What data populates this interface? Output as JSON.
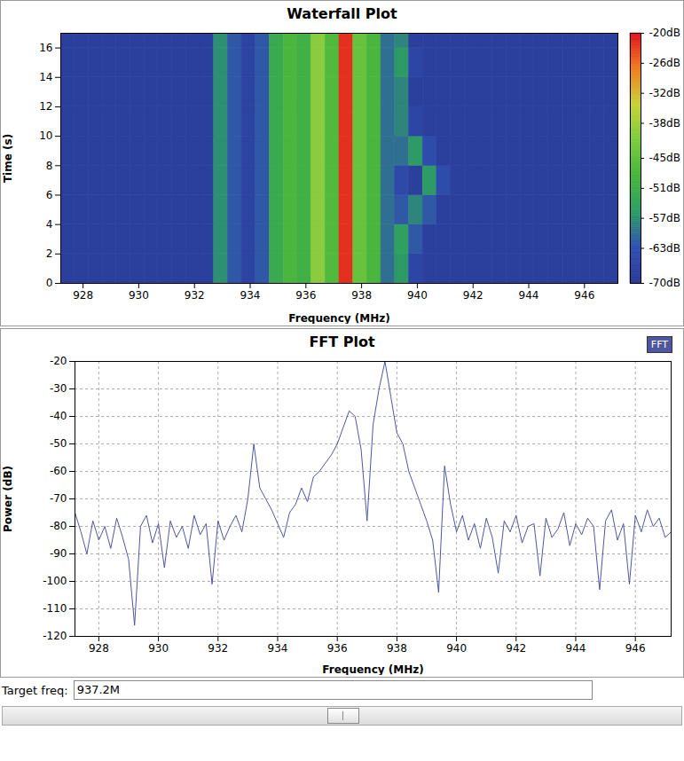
{
  "chart_data": [
    {
      "type": "heatmap",
      "title": "Waterfall Plot",
      "x_label": "Frequency (MHz)",
      "y_label": "Time (s)",
      "xlim": [
        927.2,
        947.2
      ],
      "xticks": [
        928,
        930,
        932,
        934,
        936,
        938,
        940,
        942,
        944,
        946
      ],
      "ylim": [
        0,
        17
      ],
      "yticks": [
        0,
        2,
        4,
        6,
        8,
        10,
        12,
        14,
        16
      ],
      "grid": false,
      "x_bins": [
        927.2,
        927.7,
        928.2,
        928.7,
        929.2,
        929.7,
        930.2,
        930.7,
        931.2,
        931.7,
        932.2,
        932.7,
        933.2,
        933.7,
        934.2,
        934.7,
        935.2,
        935.7,
        936.2,
        936.7,
        937.2,
        937.7,
        938.2,
        938.7,
        939.2,
        939.7,
        940.2,
        940.7,
        941.2,
        941.7,
        942.2,
        942.7,
        943.2,
        943.7,
        944.2,
        944.7,
        945.2,
        945.7,
        946.2,
        946.7,
        947.2
      ],
      "y_bins": [
        0,
        2,
        4,
        6,
        8,
        10,
        12,
        14,
        16,
        17
      ],
      "cells": [
        [
          -68,
          -68,
          -68,
          -68,
          -68,
          -68,
          -68,
          -68,
          -68,
          -68,
          -68,
          -57,
          -62,
          -67,
          -62,
          -52,
          -48,
          -50,
          -40,
          -47,
          -22,
          -44,
          -48,
          -60,
          -56,
          -66,
          -68,
          -68,
          -68,
          -68,
          -68,
          -68,
          -68,
          -68,
          -68,
          -68,
          -68,
          -68,
          -68,
          -68
        ],
        [
          -68,
          -68,
          -68,
          -68,
          -68,
          -68,
          -68,
          -68,
          -68,
          -68,
          -68,
          -57,
          -62,
          -67,
          -62,
          -52,
          -48,
          -50,
          -40,
          -47,
          -22,
          -44,
          -48,
          -60,
          -55,
          -62,
          -68,
          -68,
          -68,
          -68,
          -68,
          -68,
          -68,
          -68,
          -68,
          -68,
          -68,
          -68,
          -68,
          -68
        ],
        [
          -68,
          -68,
          -68,
          -68,
          -68,
          -68,
          -68,
          -68,
          -68,
          -68,
          -68,
          -57,
          -62,
          -67,
          -62,
          -52,
          -48,
          -50,
          -40,
          -47,
          -22,
          -44,
          -48,
          -60,
          -62,
          -58,
          -62,
          -68,
          -68,
          -68,
          -68,
          -68,
          -68,
          -68,
          -68,
          -68,
          -68,
          -68,
          -68,
          -68
        ],
        [
          -68,
          -68,
          -68,
          -68,
          -68,
          -68,
          -68,
          -68,
          -68,
          -68,
          -68,
          -57,
          -62,
          -67,
          -62,
          -52,
          -48,
          -50,
          -40,
          -47,
          -22,
          -44,
          -48,
          -60,
          -65,
          -68,
          -56,
          -64,
          -68,
          -68,
          -68,
          -68,
          -68,
          -68,
          -68,
          -68,
          -68,
          -68,
          -68,
          -68
        ],
        [
          -68,
          -68,
          -68,
          -68,
          -68,
          -68,
          -68,
          -68,
          -68,
          -68,
          -68,
          -57,
          -62,
          -67,
          -62,
          -52,
          -48,
          -50,
          -40,
          -47,
          -22,
          -44,
          -48,
          -60,
          -60,
          -56,
          -64,
          -68,
          -68,
          -68,
          -68,
          -68,
          -68,
          -68,
          -68,
          -68,
          -68,
          -68,
          -68,
          -68
        ],
        [
          -68,
          -68,
          -68,
          -68,
          -68,
          -68,
          -68,
          -68,
          -68,
          -68,
          -68,
          -57,
          -62,
          -67,
          -62,
          -52,
          -48,
          -50,
          -40,
          -47,
          -22,
          -44,
          -48,
          -60,
          -58,
          -66,
          -68,
          -68,
          -68,
          -68,
          -68,
          -68,
          -68,
          -68,
          -68,
          -68,
          -68,
          -68,
          -68,
          -68
        ],
        [
          -68,
          -68,
          -68,
          -68,
          -68,
          -68,
          -68,
          -68,
          -68,
          -68,
          -68,
          -57,
          -62,
          -67,
          -62,
          -52,
          -48,
          -50,
          -40,
          -47,
          -22,
          -44,
          -48,
          -60,
          -58,
          -68,
          -68,
          -68,
          -68,
          -68,
          -68,
          -68,
          -68,
          -68,
          -68,
          -68,
          -68,
          -68,
          -68,
          -68
        ],
        [
          -68,
          -68,
          -68,
          -68,
          -68,
          -68,
          -68,
          -68,
          -68,
          -68,
          -68,
          -57,
          -62,
          -67,
          -62,
          -52,
          -48,
          -50,
          -40,
          -47,
          -22,
          -44,
          -48,
          -60,
          -56,
          -66,
          -68,
          -68,
          -68,
          -68,
          -68,
          -68,
          -68,
          -68,
          -68,
          -68,
          -68,
          -68,
          -68,
          -68
        ],
        [
          -68,
          -68,
          -68,
          -68,
          -68,
          -68,
          -68,
          -68,
          -68,
          -68,
          -68,
          -57,
          -62,
          -67,
          -62,
          -52,
          -48,
          -50,
          -40,
          -47,
          -22,
          -44,
          -48,
          -60,
          -58,
          -68,
          -68,
          -68,
          -68,
          -68,
          -68,
          -68,
          -68,
          -68,
          -68,
          -68,
          -68,
          -68,
          -68,
          -68
        ]
      ],
      "colorbar": {
        "range": [
          -70,
          -20
        ],
        "ticks": [
          {
            "value": -20,
            "label": "-20dB"
          },
          {
            "value": -26,
            "label": "-26dB"
          },
          {
            "value": -32,
            "label": "-32dB"
          },
          {
            "value": -38,
            "label": "-38dB"
          },
          {
            "value": -45,
            "label": "-45dB"
          },
          {
            "value": -51,
            "label": "-51dB"
          },
          {
            "value": -57,
            "label": "-57dB"
          },
          {
            "value": -63,
            "label": "-63dB"
          },
          {
            "value": -70,
            "label": "-70dB"
          }
        ],
        "colors": [
          "#2a3a96",
          "#2f4fb0",
          "#2e9e64",
          "#46b43e",
          "#7acb3e",
          "#c8d238",
          "#ef7d22",
          "#e0121c"
        ]
      }
    },
    {
      "type": "line",
      "title": "FFT Plot",
      "x_label": "Frequency (MHz)",
      "y_label": "Power (dB)",
      "xlim": [
        927.2,
        947.2
      ],
      "xticks": [
        928,
        930,
        932,
        934,
        936,
        938,
        940,
        942,
        944,
        946
      ],
      "ylim": [
        -120,
        -20
      ],
      "yticks": [
        -120,
        -110,
        -100,
        -90,
        -80,
        -70,
        -60,
        -50,
        -40,
        -30,
        -20
      ],
      "grid": true,
      "legend": "top-right",
      "x": [
        927.2,
        927.4,
        927.6,
        927.8,
        928.0,
        928.2,
        928.4,
        928.6,
        928.8,
        929.0,
        929.2,
        929.4,
        929.6,
        929.8,
        930.0,
        930.2,
        930.4,
        930.6,
        930.8,
        931.0,
        931.2,
        931.4,
        931.6,
        931.8,
        932.0,
        932.2,
        932.4,
        932.6,
        932.8,
        933.0,
        933.2,
        933.4,
        933.6,
        933.8,
        934.0,
        934.2,
        934.4,
        934.6,
        934.8,
        935.0,
        935.2,
        935.4,
        935.6,
        935.8,
        936.0,
        936.2,
        936.4,
        936.6,
        936.8,
        937.0,
        937.2,
        937.4,
        937.6,
        937.8,
        938.0,
        938.2,
        938.4,
        938.6,
        938.8,
        939.0,
        939.2,
        939.4,
        939.6,
        939.8,
        940.0,
        940.2,
        940.4,
        940.6,
        940.8,
        941.0,
        941.2,
        941.4,
        941.6,
        941.8,
        942.0,
        942.2,
        942.4,
        942.6,
        942.8,
        943.0,
        943.2,
        943.4,
        943.6,
        943.8,
        944.0,
        944.2,
        944.4,
        944.6,
        944.8,
        945.0,
        945.2,
        945.4,
        945.6,
        945.8,
        946.0,
        946.2,
        946.4,
        946.6,
        946.8,
        947.0,
        947.2
      ],
      "series": [
        {
          "name": "FFT",
          "color": "#4f56a0",
          "values": [
            -75,
            -82,
            -90,
            -78,
            -85,
            -80,
            -88,
            -77,
            -84,
            -92,
            -116,
            -80,
            -76,
            -86,
            -79,
            -95,
            -78,
            -84,
            -80,
            -88,
            -76,
            -83,
            -79,
            -101,
            -78,
            -85,
            -80,
            -76,
            -82,
            -70,
            -50,
            -66,
            -70,
            -74,
            -79,
            -84,
            -75,
            -72,
            -66,
            -71,
            -62,
            -60,
            -57,
            -54,
            -50,
            -44,
            -38,
            -40,
            -52,
            -78,
            -43,
            -30,
            -20,
            -33,
            -46,
            -50,
            -60,
            -66,
            -72,
            -78,
            -85,
            -104,
            -58,
            -72,
            -82,
            -76,
            -85,
            -79,
            -88,
            -77,
            -84,
            -97,
            -78,
            -82,
            -76,
            -86,
            -80,
            -79,
            -98,
            -77,
            -84,
            -81,
            -75,
            -87,
            -79,
            -83,
            -77,
            -80,
            -103,
            -78,
            -74,
            -85,
            -79,
            -101,
            -76,
            -82,
            -74,
            -80,
            -77,
            -84,
            -82
          ]
        }
      ]
    }
  ],
  "controls": {
    "label": "Target freq:",
    "value": "937.2M"
  }
}
